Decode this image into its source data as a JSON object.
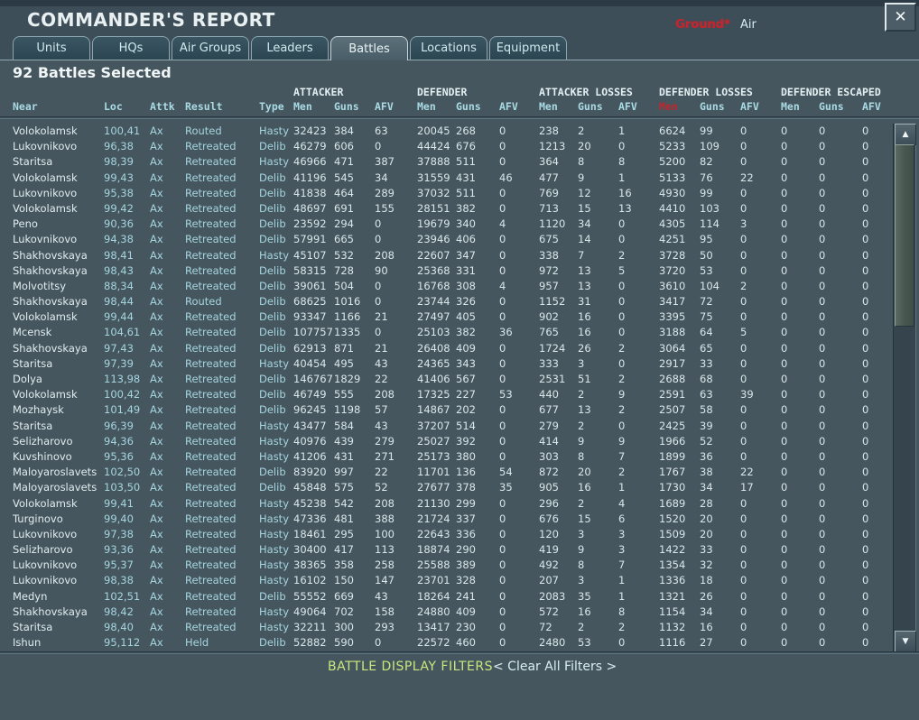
{
  "window": {
    "title": "COMMANDER'S REPORT",
    "selected_summary": "92 Battles Selected"
  },
  "icons": {
    "close": "✕",
    "scroll_up": "▲",
    "scroll_down": "▼"
  },
  "top_filters": {
    "ground_label": "Ground*",
    "air_label": "Air"
  },
  "colors": {
    "background": "#46565f",
    "accent_red": "#c1262e",
    "header_cyan": "#a9dbe4",
    "filter_green": "#c8e87d"
  },
  "tabs": [
    {
      "label": "Units",
      "active": false
    },
    {
      "label": "HQs",
      "active": false
    },
    {
      "label": "Air Groups",
      "active": false
    },
    {
      "label": "Leaders",
      "active": false
    },
    {
      "label": "Battles",
      "active": true
    },
    {
      "label": "Locations",
      "active": false
    },
    {
      "label": "Equipment",
      "active": false
    }
  ],
  "table": {
    "group_headers": [
      "ATTACKER",
      "DEFENDER",
      "ATTACKER LOSSES",
      "DEFENDER LOSSES",
      "DEFENDER ESCAPED"
    ],
    "columns": [
      {
        "label": "Near"
      },
      {
        "label": "Loc"
      },
      {
        "label": "Attk"
      },
      {
        "label": "Result"
      },
      {
        "label": "Type"
      },
      {
        "label": "Men"
      },
      {
        "label": "Guns"
      },
      {
        "label": "AFV"
      },
      {
        "label": "Men"
      },
      {
        "label": "Guns"
      },
      {
        "label": "AFV"
      },
      {
        "label": "Men"
      },
      {
        "label": "Guns"
      },
      {
        "label": "AFV"
      },
      {
        "label": "Men",
        "red": true
      },
      {
        "label": "Guns"
      },
      {
        "label": "AFV"
      },
      {
        "label": "Men"
      },
      {
        "label": "Guns"
      },
      {
        "label": "AFV"
      }
    ],
    "rows": [
      [
        "Volokolamsk",
        "100,41",
        "Ax",
        "Routed",
        "Hasty",
        "32423",
        "384",
        "63",
        "20045",
        "268",
        "0",
        "238",
        "2",
        "1",
        "6624",
        "99",
        "0",
        "0",
        "0",
        "0"
      ],
      [
        "Lukovnikovo",
        "96,38",
        "Ax",
        "Retreated",
        "Delib",
        "46279",
        "606",
        "0",
        "44424",
        "676",
        "0",
        "1213",
        "20",
        "0",
        "5233",
        "109",
        "0",
        "0",
        "0",
        "0"
      ],
      [
        "Staritsa",
        "98,39",
        "Ax",
        "Retreated",
        "Hasty",
        "46966",
        "471",
        "387",
        "37888",
        "511",
        "0",
        "364",
        "8",
        "8",
        "5200",
        "82",
        "0",
        "0",
        "0",
        "0"
      ],
      [
        "Volokolamsk",
        "99,43",
        "Ax",
        "Retreated",
        "Delib",
        "41196",
        "545",
        "34",
        "31559",
        "431",
        "46",
        "477",
        "9",
        "1",
        "5133",
        "76",
        "22",
        "0",
        "0",
        "0"
      ],
      [
        "Lukovnikovo",
        "95,38",
        "Ax",
        "Retreated",
        "Delib",
        "41838",
        "464",
        "289",
        "37032",
        "511",
        "0",
        "769",
        "12",
        "16",
        "4930",
        "99",
        "0",
        "0",
        "0",
        "0"
      ],
      [
        "Volokolamsk",
        "99,42",
        "Ax",
        "Retreated",
        "Delib",
        "48697",
        "691",
        "155",
        "28151",
        "382",
        "0",
        "713",
        "15",
        "13",
        "4410",
        "103",
        "0",
        "0",
        "0",
        "0"
      ],
      [
        "Peno",
        "90,36",
        "Ax",
        "Retreated",
        "Delib",
        "23592",
        "294",
        "0",
        "19679",
        "340",
        "4",
        "1120",
        "34",
        "0",
        "4305",
        "114",
        "3",
        "0",
        "0",
        "0"
      ],
      [
        "Lukovnikovo",
        "94,38",
        "Ax",
        "Retreated",
        "Delib",
        "57991",
        "665",
        "0",
        "23946",
        "406",
        "0",
        "675",
        "14",
        "0",
        "4251",
        "95",
        "0",
        "0",
        "0",
        "0"
      ],
      [
        "Shakhovskaya",
        "98,41",
        "Ax",
        "Retreated",
        "Hasty",
        "45107",
        "532",
        "208",
        "22607",
        "347",
        "0",
        "338",
        "7",
        "2",
        "3728",
        "50",
        "0",
        "0",
        "0",
        "0"
      ],
      [
        "Shakhovskaya",
        "98,43",
        "Ax",
        "Retreated",
        "Delib",
        "58315",
        "728",
        "90",
        "25368",
        "331",
        "0",
        "972",
        "13",
        "5",
        "3720",
        "53",
        "0",
        "0",
        "0",
        "0"
      ],
      [
        "Molvotitsy",
        "88,34",
        "Ax",
        "Retreated",
        "Delib",
        "39061",
        "504",
        "0",
        "16768",
        "308",
        "4",
        "957",
        "13",
        "0",
        "3610",
        "104",
        "2",
        "0",
        "0",
        "0"
      ],
      [
        "Shakhovskaya",
        "98,44",
        "Ax",
        "Routed",
        "Delib",
        "68625",
        "1016",
        "0",
        "23744",
        "326",
        "0",
        "1152",
        "31",
        "0",
        "3417",
        "72",
        "0",
        "0",
        "0",
        "0"
      ],
      [
        "Volokolamsk",
        "99,44",
        "Ax",
        "Retreated",
        "Delib",
        "93347",
        "1166",
        "21",
        "27497",
        "405",
        "0",
        "902",
        "16",
        "0",
        "3395",
        "75",
        "0",
        "0",
        "0",
        "0"
      ],
      [
        "Mcensk",
        "104,61",
        "Ax",
        "Retreated",
        "Delib",
        "107757",
        "1335",
        "0",
        "25103",
        "382",
        "36",
        "765",
        "16",
        "0",
        "3188",
        "64",
        "5",
        "0",
        "0",
        "0"
      ],
      [
        "Shakhovskaya",
        "97,43",
        "Ax",
        "Retreated",
        "Delib",
        "62913",
        "871",
        "21",
        "26408",
        "409",
        "0",
        "1724",
        "26",
        "2",
        "3064",
        "65",
        "0",
        "0",
        "0",
        "0"
      ],
      [
        "Staritsa",
        "97,39",
        "Ax",
        "Retreated",
        "Hasty",
        "40454",
        "495",
        "43",
        "24365",
        "343",
        "0",
        "333",
        "3",
        "0",
        "2917",
        "33",
        "0",
        "0",
        "0",
        "0"
      ],
      [
        "Dolya",
        "113,98",
        "Ax",
        "Retreated",
        "Delib",
        "146767",
        "1829",
        "22",
        "41406",
        "567",
        "0",
        "2531",
        "51",
        "2",
        "2688",
        "68",
        "0",
        "0",
        "0",
        "0"
      ],
      [
        "Volokolamsk",
        "100,42",
        "Ax",
        "Retreated",
        "Delib",
        "46749",
        "555",
        "208",
        "17325",
        "227",
        "53",
        "440",
        "2",
        "9",
        "2591",
        "63",
        "39",
        "0",
        "0",
        "0"
      ],
      [
        "Mozhaysk",
        "101,49",
        "Ax",
        "Retreated",
        "Delib",
        "96245",
        "1198",
        "57",
        "14867",
        "202",
        "0",
        "677",
        "13",
        "2",
        "2507",
        "58",
        "0",
        "0",
        "0",
        "0"
      ],
      [
        "Staritsa",
        "96,39",
        "Ax",
        "Retreated",
        "Hasty",
        "43477",
        "584",
        "43",
        "37207",
        "514",
        "0",
        "279",
        "2",
        "0",
        "2425",
        "39",
        "0",
        "0",
        "0",
        "0"
      ],
      [
        "Selizharovo",
        "94,36",
        "Ax",
        "Retreated",
        "Hasty",
        "40976",
        "439",
        "279",
        "25027",
        "392",
        "0",
        "414",
        "9",
        "9",
        "1966",
        "52",
        "0",
        "0",
        "0",
        "0"
      ],
      [
        "Kuvshinovo",
        "95,36",
        "Ax",
        "Retreated",
        "Hasty",
        "41206",
        "431",
        "271",
        "25173",
        "380",
        "0",
        "303",
        "8",
        "7",
        "1899",
        "36",
        "0",
        "0",
        "0",
        "0"
      ],
      [
        "Maloyaroslavets",
        "102,50",
        "Ax",
        "Retreated",
        "Delib",
        "83920",
        "997",
        "22",
        "11701",
        "136",
        "54",
        "872",
        "20",
        "2",
        "1767",
        "38",
        "22",
        "0",
        "0",
        "0"
      ],
      [
        "Maloyaroslavets",
        "103,50",
        "Ax",
        "Retreated",
        "Delib",
        "45848",
        "575",
        "52",
        "27677",
        "378",
        "35",
        "905",
        "16",
        "1",
        "1730",
        "34",
        "17",
        "0",
        "0",
        "0"
      ],
      [
        "Volokolamsk",
        "99,41",
        "Ax",
        "Retreated",
        "Hasty",
        "45238",
        "542",
        "208",
        "21130",
        "299",
        "0",
        "296",
        "2",
        "4",
        "1689",
        "28",
        "0",
        "0",
        "0",
        "0"
      ],
      [
        "Turginovo",
        "99,40",
        "Ax",
        "Retreated",
        "Hasty",
        "47336",
        "481",
        "388",
        "21724",
        "337",
        "0",
        "676",
        "15",
        "6",
        "1520",
        "20",
        "0",
        "0",
        "0",
        "0"
      ],
      [
        "Lukovnikovo",
        "97,38",
        "Ax",
        "Retreated",
        "Hasty",
        "18461",
        "295",
        "100",
        "22643",
        "336",
        "0",
        "120",
        "3",
        "3",
        "1509",
        "20",
        "0",
        "0",
        "0",
        "0"
      ],
      [
        "Selizharovo",
        "93,36",
        "Ax",
        "Retreated",
        "Hasty",
        "30400",
        "417",
        "113",
        "18874",
        "290",
        "0",
        "419",
        "9",
        "3",
        "1422",
        "33",
        "0",
        "0",
        "0",
        "0"
      ],
      [
        "Lukovnikovo",
        "95,37",
        "Ax",
        "Retreated",
        "Hasty",
        "38365",
        "358",
        "258",
        "25588",
        "389",
        "0",
        "492",
        "8",
        "7",
        "1354",
        "32",
        "0",
        "0",
        "0",
        "0"
      ],
      [
        "Lukovnikovo",
        "98,38",
        "Ax",
        "Retreated",
        "Hasty",
        "16102",
        "150",
        "147",
        "23701",
        "328",
        "0",
        "207",
        "3",
        "1",
        "1336",
        "18",
        "0",
        "0",
        "0",
        "0"
      ],
      [
        "Medyn",
        "102,51",
        "Ax",
        "Retreated",
        "Delib",
        "55552",
        "669",
        "43",
        "18264",
        "241",
        "0",
        "2083",
        "35",
        "1",
        "1321",
        "26",
        "0",
        "0",
        "0",
        "0"
      ],
      [
        "Shakhovskaya",
        "98,42",
        "Ax",
        "Retreated",
        "Hasty",
        "49064",
        "702",
        "158",
        "24880",
        "409",
        "0",
        "572",
        "16",
        "8",
        "1154",
        "34",
        "0",
        "0",
        "0",
        "0"
      ],
      [
        "Staritsa",
        "98,40",
        "Ax",
        "Retreated",
        "Hasty",
        "32211",
        "300",
        "293",
        "13417",
        "230",
        "0",
        "72",
        "2",
        "2",
        "1132",
        "16",
        "0",
        "0",
        "0",
        "0"
      ],
      [
        "Ishun",
        "95,112",
        "Ax",
        "Held",
        "Delib",
        "52882",
        "590",
        "0",
        "22572",
        "460",
        "0",
        "2480",
        "53",
        "0",
        "1116",
        "27",
        "0",
        "0",
        "0",
        "0"
      ]
    ]
  },
  "footer": {
    "filters_label": "BATTLE DISPLAY FILTERS",
    "clear_label": "< Clear All Filters >"
  }
}
